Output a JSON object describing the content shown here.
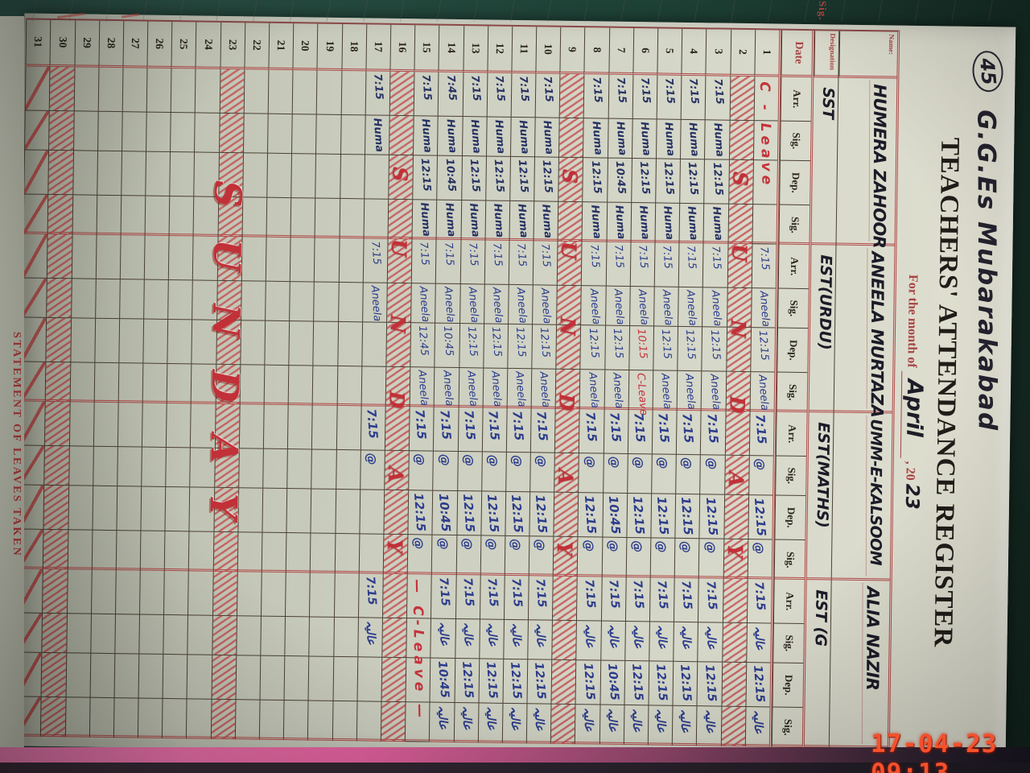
{
  "photo": {
    "timestamp": "17-04-23  09:13"
  },
  "header": {
    "school_no": "45",
    "school_name": "G.G.Es  Mubarakabad",
    "title": "TEACHERS' ATTENDANCE REGISTER",
    "month_label": "For the month of",
    "month": "April",
    "year_print": ", 20",
    "year_hand": "23"
  },
  "side_pages": {
    "statement": "STATEMENT OF LEAVES TAKEN",
    "sig_label": "Sig."
  },
  "colors": {
    "paper": "#d3d5c6",
    "print_red": "#a84444",
    "ink_blue": "#2c3c8c",
    "ink_red": "#c5323a",
    "cover_pink": "#e2619e",
    "stamp_orange": "#f4512c"
  },
  "table": {
    "name_label": "Name:",
    "designation_label": "Designation",
    "date_label": "Date",
    "col_labels": [
      "Arr.",
      "Sig.",
      "Dep.",
      "Sig."
    ],
    "sunday_label": "SUNDAY",
    "teachers": [
      {
        "name": "HUMERA ZAHOOR",
        "designation": "SST",
        "signature": "Huma"
      },
      {
        "name": "ANEELA MURTAZA",
        "designation": "EST(URDU)",
        "signature": "Aneela"
      },
      {
        "name": "UMM-E-KALSOOM",
        "designation": "EST(MATHS)",
        "signature": "@"
      },
      {
        "name": "ALIA NAZIR",
        "designation": "EST (G",
        "signature": "عالیہ"
      }
    ],
    "rows": [
      {
        "d": 1,
        "type": "data",
        "t": [
          {
            "span": "C - Leave"
          },
          {
            "c": [
              "7:15",
              "Aneela",
              "12:15",
              "Aneela"
            ]
          },
          {
            "c": [
              "7:15",
              "@",
              "12:15",
              "@"
            ]
          },
          {
            "c": [
              "7:15",
              "عالیہ",
              "12:15",
              "عالیہ"
            ]
          }
        ]
      },
      {
        "d": 2,
        "type": "sunday"
      },
      {
        "d": 3,
        "type": "data",
        "t": [
          {
            "c": [
              "7:15",
              "Huma",
              "12:15",
              "Huma"
            ]
          },
          {
            "c": [
              "7:15",
              "Aneela",
              "12:15",
              "Aneela"
            ]
          },
          {
            "c": [
              "7:15",
              "@",
              "12:15",
              "@"
            ]
          },
          {
            "c": [
              "7:15",
              "عالیہ",
              "12:15",
              "عالیہ"
            ]
          }
        ]
      },
      {
        "d": 4,
        "type": "data",
        "t": [
          {
            "c": [
              "7:15",
              "Huma",
              "12:15",
              "Huma"
            ]
          },
          {
            "c": [
              "7:15",
              "Aneela",
              "12:15",
              "Aneela"
            ]
          },
          {
            "c": [
              "7:15",
              "@",
              "12:15",
              "@"
            ]
          },
          {
            "c": [
              "7:15",
              "عالیہ",
              "12:15",
              "عالیہ"
            ]
          }
        ]
      },
      {
        "d": 5,
        "type": "data",
        "t": [
          {
            "c": [
              "7:15",
              "Huma",
              "12:15",
              "Huma"
            ]
          },
          {
            "c": [
              "7:15",
              "Aneela",
              "12:15",
              "Aneela"
            ]
          },
          {
            "c": [
              "7:15",
              "@",
              "12:15",
              "@"
            ]
          },
          {
            "c": [
              "7:15",
              "عالیہ",
              "12:15",
              "عالیہ"
            ]
          }
        ]
      },
      {
        "d": 6,
        "type": "data",
        "t": [
          {
            "c": [
              "7:15",
              "Huma",
              "12:15",
              "Huma"
            ]
          },
          {
            "c": [
              "7:15",
              "Aneela",
              {
                "v": "10:15",
                "red": 1
              },
              {
                "v": "C-Leave",
                "red": 1
              }
            ]
          },
          {
            "c": [
              "7:15",
              "@",
              "12:15",
              "@"
            ]
          },
          {
            "c": [
              "7:15",
              "عالیہ",
              "12:15",
              "عالیہ"
            ]
          }
        ]
      },
      {
        "d": 7,
        "type": "data",
        "t": [
          {
            "c": [
              "7:15",
              "Huma",
              "10:45",
              "Huma"
            ]
          },
          {
            "c": [
              "7:15",
              "Aneela",
              "12:15",
              "Aneela"
            ]
          },
          {
            "c": [
              "7:15",
              "@",
              "10:45",
              "@"
            ]
          },
          {
            "c": [
              "7:15",
              "عالیہ",
              "10:45",
              "عالیہ"
            ]
          }
        ]
      },
      {
        "d": 8,
        "type": "data",
        "t": [
          {
            "c": [
              "7:15",
              "Huma",
              "12:15",
              "Huma"
            ]
          },
          {
            "c": [
              "7:15",
              "Aneela",
              "12:15",
              "Aneela"
            ]
          },
          {
            "c": [
              "7:15",
              "@",
              "12:15",
              "@"
            ]
          },
          {
            "c": [
              "7:15",
              "عالیہ",
              "12:15",
              "عالیہ"
            ]
          }
        ]
      },
      {
        "d": 9,
        "type": "sunday"
      },
      {
        "d": 10,
        "type": "data",
        "t": [
          {
            "c": [
              "7:15",
              "Huma",
              "12:15",
              "Huma"
            ]
          },
          {
            "c": [
              "7:15",
              "Aneela",
              "12:15",
              "Aneela"
            ]
          },
          {
            "c": [
              "7:15",
              "@",
              "12:15",
              "@"
            ]
          },
          {
            "c": [
              "7:15",
              "عالیہ",
              "12:15",
              "عالیہ"
            ]
          }
        ]
      },
      {
        "d": 11,
        "type": "data",
        "t": [
          {
            "c": [
              "7:15",
              "Huma",
              "12:15",
              "Huma"
            ]
          },
          {
            "c": [
              "7:15",
              "Aneela",
              "12:15",
              "Aneela"
            ]
          },
          {
            "c": [
              "7:15",
              "@",
              "12:15",
              "@"
            ]
          },
          {
            "c": [
              "7:15",
              "عالیہ",
              "12:15",
              "عالیہ"
            ]
          }
        ]
      },
      {
        "d": 12,
        "type": "data",
        "t": [
          {
            "c": [
              "7:15",
              "Huma",
              "12:15",
              "Huma"
            ]
          },
          {
            "c": [
              "7:15",
              "Aneela",
              "12:15",
              "Aneela"
            ]
          },
          {
            "c": [
              "7:15",
              "@",
              "12:15",
              "@"
            ]
          },
          {
            "c": [
              "7:15",
              "عالیہ",
              "12:15",
              "عالیہ"
            ]
          }
        ]
      },
      {
        "d": 13,
        "type": "data",
        "t": [
          {
            "c": [
              "7:15",
              "Huma",
              "12:15",
              "Huma"
            ]
          },
          {
            "c": [
              "7:15",
              "Aneela",
              "12:15",
              "Aneela"
            ]
          },
          {
            "c": [
              "7:15",
              "@",
              "12:15",
              "@"
            ]
          },
          {
            "c": [
              "7:15",
              "عالیہ",
              "12:15",
              "عالیہ"
            ]
          }
        ]
      },
      {
        "d": 14,
        "type": "data",
        "t": [
          {
            "c": [
              "7:45",
              "Huma",
              "10:45",
              "Huma"
            ]
          },
          {
            "c": [
              "7:15",
              "Aneela",
              "10:45",
              "Aneela"
            ]
          },
          {
            "c": [
              "7:15",
              "@",
              "10:45",
              "@"
            ]
          },
          {
            "c": [
              "7:15",
              "عالیہ",
              "10:45",
              "عالیہ"
            ]
          }
        ]
      },
      {
        "d": 15,
        "type": "data",
        "t": [
          {
            "c": [
              "7:15",
              "Huma",
              "12:15",
              "Huma"
            ]
          },
          {
            "c": [
              "7:15",
              "Aneela",
              "12:45",
              "Aneela"
            ]
          },
          {
            "c": [
              "7:15",
              "@",
              "12:15",
              "@"
            ]
          },
          {
            "span": "— C-Leave —"
          }
        ]
      },
      {
        "d": 16,
        "type": "sunday"
      },
      {
        "d": 17,
        "type": "data",
        "t": [
          {
            "c": [
              "7:15",
              "Huma",
              "",
              ""
            ]
          },
          {
            "c": [
              "7:15",
              "Aneela",
              "",
              ""
            ]
          },
          {
            "c": [
              "7:15",
              "@",
              "",
              ""
            ]
          },
          {
            "c": [
              "7:15",
              "عالیہ",
              "",
              ""
            ]
          }
        ]
      },
      {
        "d": 18,
        "type": "empty"
      },
      {
        "d": 19,
        "type": "empty"
      },
      {
        "d": 20,
        "type": "empty"
      },
      {
        "d": 21,
        "type": "empty"
      },
      {
        "d": 22,
        "type": "empty"
      },
      {
        "d": 23,
        "type": "sunday_big"
      },
      {
        "d": 24,
        "type": "empty"
      },
      {
        "d": 25,
        "type": "empty"
      },
      {
        "d": 26,
        "type": "empty"
      },
      {
        "d": 27,
        "type": "empty"
      },
      {
        "d": 28,
        "type": "empty"
      },
      {
        "d": 29,
        "type": "empty"
      },
      {
        "d": 30,
        "type": "sunday_plain"
      },
      {
        "d": 31,
        "type": "crossed"
      }
    ]
  }
}
